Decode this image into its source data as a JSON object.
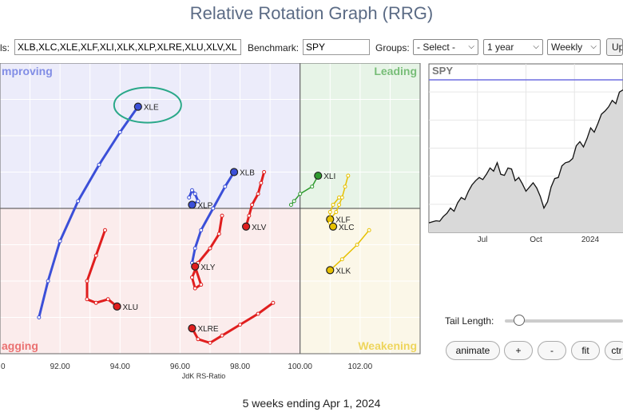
{
  "title": "Relative Rotation Graph (RRG)",
  "toolbar": {
    "symbols_label": "ls:",
    "symbols_value": "XLB,XLC,XLE,XLF,XLI,XLK,XLP,XLRE,XLU,XLV,XL",
    "benchmark_label": "Benchmark:",
    "benchmark_value": "SPY",
    "groups_label": "Groups:",
    "groups_value": "- Select -",
    "period_value": "1 year",
    "frequency_value": "Weekly",
    "update_label": "Up"
  },
  "quadrants": {
    "improving": "mproving",
    "leading": "Leading",
    "lagging": "agging",
    "weakening": "Weakening"
  },
  "colors": {
    "improving": "#3b4fd8",
    "leading": "#2e9a2e",
    "lagging": "#e01e1e",
    "weakening": "#e6c000",
    "highlight": "#2aa889"
  },
  "chart_data": {
    "type": "scatter",
    "title": "",
    "xlabel": "JdK RS-Ratio",
    "ylabel": "",
    "xlim": [
      90,
      104
    ],
    "ylim": [
      96,
      104
    ],
    "center": [
      100,
      100
    ],
    "x_ticks": [
      "0",
      "92.00",
      "94.00",
      "96.00",
      "98.00",
      "100.00",
      "102.00"
    ],
    "series": [
      {
        "name": "XLE",
        "color": "#3b4fd8",
        "x": [
          91.3,
          91.6,
          92.0,
          92.6,
          93.3,
          94.0,
          94.6
        ],
        "y": [
          97.0,
          98.0,
          99.1,
          100.2,
          101.2,
          102.1,
          102.8
        ]
      },
      {
        "name": "XLB",
        "color": "#3b4fd8",
        "x": [
          96.4,
          96.5,
          96.7,
          97.1,
          97.5,
          97.8
        ],
        "y": [
          98.5,
          98.9,
          99.4,
          100.0,
          100.6,
          101.0
        ]
      },
      {
        "name": "XLP",
        "color": "#3b4fd8",
        "x": [
          96.3,
          96.4,
          96.5,
          96.6,
          96.4
        ],
        "y": [
          100.3,
          100.5,
          100.4,
          100.2,
          100.1
        ]
      },
      {
        "name": "XLI",
        "color": "#2e9a2e",
        "x": [
          99.7,
          99.8,
          100.0,
          100.4,
          100.6
        ],
        "y": [
          100.1,
          100.2,
          100.4,
          100.6,
          100.9
        ]
      },
      {
        "name": "XLU",
        "color": "#e01e1e",
        "x": [
          93.5,
          93.2,
          92.9,
          92.9,
          93.2,
          93.6,
          93.9
        ],
        "y": [
          99.4,
          98.7,
          98.0,
          97.5,
          97.4,
          97.5,
          97.3
        ]
      },
      {
        "name": "XLV",
        "color": "#e01e1e",
        "x": [
          98.8,
          98.7,
          98.6,
          98.4,
          98.3,
          98.2
        ],
        "y": [
          101.0,
          100.7,
          100.4,
          100.1,
          99.8,
          99.5
        ]
      },
      {
        "name": "XLY",
        "color": "#e01e1e",
        "x": [
          97.4,
          97.3,
          97.0,
          96.6,
          96.4,
          96.5,
          96.7,
          96.5
        ],
        "y": [
          99.8,
          99.3,
          98.9,
          98.5,
          98.1,
          97.8,
          97.9,
          98.4
        ]
      },
      {
        "name": "XLRE",
        "color": "#e01e1e",
        "x": [
          99.1,
          98.6,
          98.0,
          97.4,
          97.0,
          96.6,
          96.4
        ],
        "y": [
          97.4,
          97.1,
          96.8,
          96.5,
          96.3,
          96.4,
          96.7
        ]
      },
      {
        "name": "XLF",
        "color": "#e6c000",
        "x": [
          101.6,
          101.5,
          101.4,
          101.3,
          101.2,
          101.0
        ],
        "y": [
          100.9,
          100.6,
          100.3,
          100.1,
          99.9,
          99.7
        ]
      },
      {
        "name": "XLC",
        "color": "#e6c000",
        "x": [
          101.3,
          101.1,
          101.0,
          101.0,
          101.1
        ],
        "y": [
          100.3,
          100.1,
          99.9,
          99.6,
          99.5
        ]
      },
      {
        "name": "XLK",
        "color": "#e6c000",
        "x": [
          102.3,
          101.9,
          101.4,
          101.0
        ],
        "y": [
          99.4,
          99.0,
          98.6,
          98.3
        ]
      }
    ]
  },
  "spy_panel": {
    "label": "SPY",
    "x_ticks": [
      "Jul",
      "Oct",
      "2024"
    ],
    "values": [
      3990,
      4000,
      4010,
      4005,
      4050,
      4080,
      4130,
      4100,
      4180,
      4230,
      4210,
      4290,
      4350,
      4390,
      4420,
      4400,
      4450,
      4510,
      4480,
      4560,
      4450,
      4440,
      4510,
      4500,
      4390,
      4420,
      4360,
      4290,
      4330,
      4370,
      4320,
      4240,
      4130,
      4190,
      4330,
      4410,
      4420,
      4530,
      4560,
      4570,
      4600,
      4720,
      4760,
      4710,
      4790,
      4890,
      4850,
      4930,
      5020,
      5050,
      5090,
      5150,
      5120,
      5230,
      5250
    ]
  },
  "controls": {
    "tail_length_label": "Tail Length:",
    "tail_length_value": 0.12,
    "animate_label": "animate",
    "plus_label": "+",
    "minus_label": "-",
    "fit_label": "fit",
    "ctrl_label": "ctr"
  },
  "footer": "5 weeks ending Apr 1, 2024"
}
